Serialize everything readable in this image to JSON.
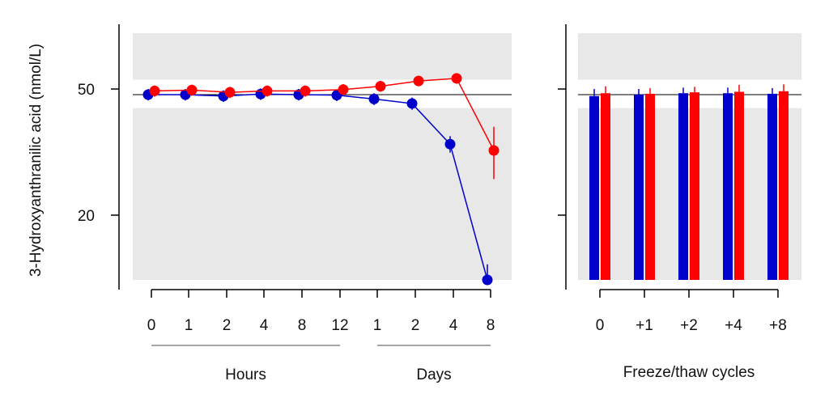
{
  "chart_data": [
    {
      "type": "line",
      "ylabel": "3-Hydroxyanthranilic acid (nmol/L)",
      "y_scale": "log",
      "ylim": [
        12.5,
        75
      ],
      "yticks": [
        20,
        50
      ],
      "ytick_labels": [
        "20",
        "50"
      ],
      "reference_line": 48,
      "shaded_bands": [
        [
          53.5,
          75
        ],
        [
          12.5,
          43.5
        ]
      ],
      "categories": [
        "0",
        "1",
        "2",
        "4",
        "8",
        "12",
        "1",
        "2",
        "4",
        "8"
      ],
      "groups": [
        {
          "label": "Hours",
          "categories": [
            "0",
            "1",
            "2",
            "4",
            "8",
            "12"
          ]
        },
        {
          "label": "Days",
          "categories": [
            "1",
            "2",
            "4",
            "8"
          ]
        }
      ],
      "series": [
        {
          "color": "#0000cc",
          "values": [
            48.0,
            48.0,
            47.5,
            48.2,
            48.0,
            47.8,
            46.5,
            45.0,
            33.5,
            12.5
          ],
          "error": [
            2.0,
            2.0,
            2.0,
            2.0,
            2.0,
            2.0,
            2.0,
            2.0,
            2.0,
            1.5
          ]
        },
        {
          "color": "#ff0000",
          "values": [
            49.3,
            49.6,
            48.8,
            49.3,
            49.3,
            49.8,
            51.0,
            53.0,
            54.0,
            32.0
          ],
          "error": [
            2.0,
            2.0,
            2.0,
            2.0,
            2.0,
            2.0,
            2.0,
            2.0,
            2.0,
            6.0
          ]
        }
      ]
    },
    {
      "type": "bar",
      "xlabel": "Freeze/thaw cycles",
      "y_scale": "log",
      "ylim": [
        12.5,
        75
      ],
      "yticks": [
        20,
        50
      ],
      "reference_line": 48,
      "shaded_bands": [
        [
          53.5,
          75
        ],
        [
          12.5,
          43.5
        ]
      ],
      "categories": [
        "0",
        "+1",
        "+2",
        "+4",
        "+8"
      ],
      "series": [
        {
          "color": "#0000cc",
          "values": [
            47.5,
            48.0,
            48.5,
            48.5,
            48.3
          ],
          "error": [
            2.5,
            2.0,
            2.0,
            2.0,
            2.0
          ]
        },
        {
          "color": "#ff0000",
          "values": [
            48.5,
            48.3,
            48.8,
            49.0,
            49.2
          ],
          "error": [
            2.5,
            2.0,
            2.0,
            2.5,
            2.5
          ]
        }
      ]
    }
  ]
}
